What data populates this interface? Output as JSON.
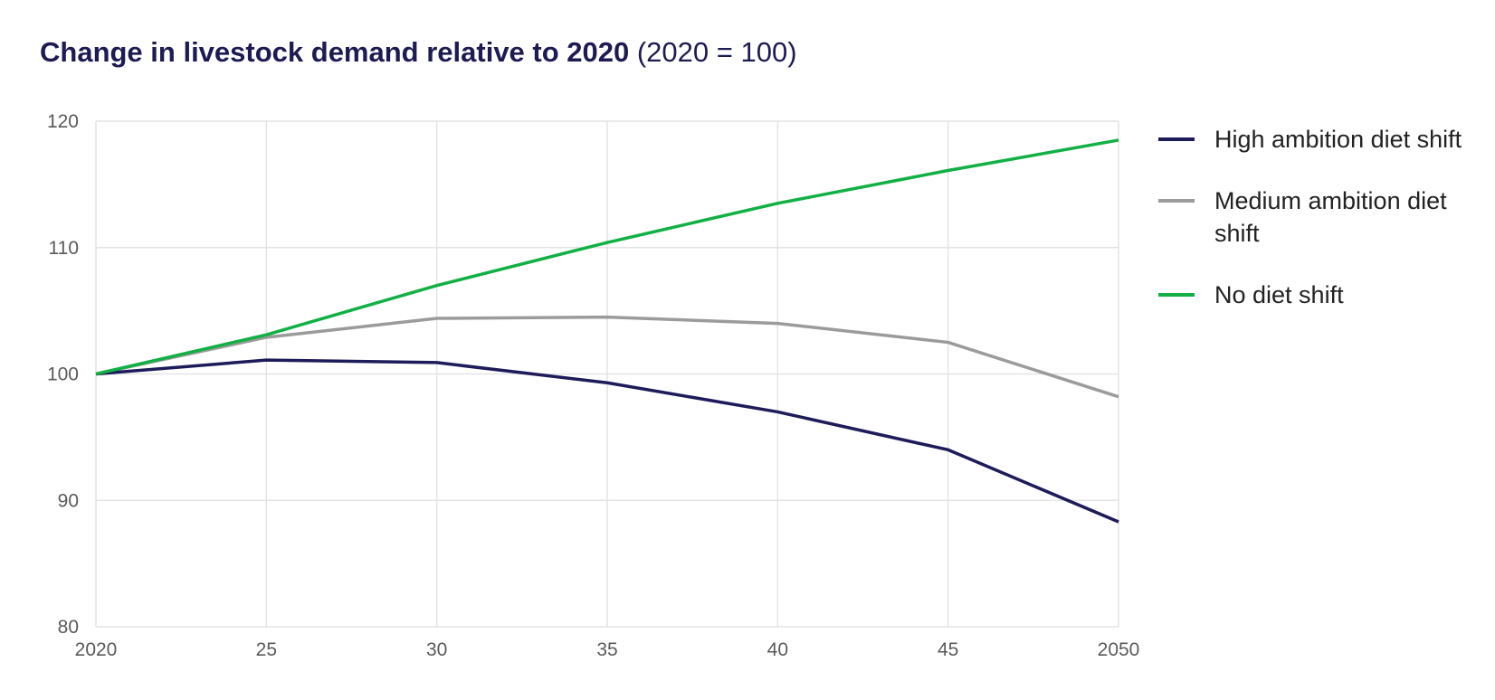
{
  "title": {
    "bold": "Change in livestock demand relative to 2020",
    "normal": " (2020 = 100)"
  },
  "chart_data": {
    "type": "line",
    "x": [
      2020,
      2025,
      2030,
      2035,
      2040,
      2045,
      2050
    ],
    "x_tick_labels": [
      "2020",
      "25",
      "30",
      "35",
      "40",
      "45",
      "2050"
    ],
    "y_ticks": [
      80,
      90,
      100,
      110,
      120
    ],
    "ylim": [
      80,
      120
    ],
    "grid": true,
    "legend_position": "right",
    "series": [
      {
        "name": "High ambition diet shift",
        "color": "#1d1b5a",
        "values": [
          100,
          101.1,
          100.9,
          99.3,
          97.0,
          94.0,
          88.3
        ]
      },
      {
        "name": "Medium ambition diet shift",
        "color": "#9b9b9b",
        "values": [
          100,
          102.9,
          104.4,
          104.5,
          104.0,
          102.5,
          98.2
        ]
      },
      {
        "name": "No diet shift",
        "color": "#12b044",
        "values": [
          100,
          103.1,
          107.0,
          110.4,
          113.5,
          116.1,
          118.5
        ]
      }
    ]
  }
}
